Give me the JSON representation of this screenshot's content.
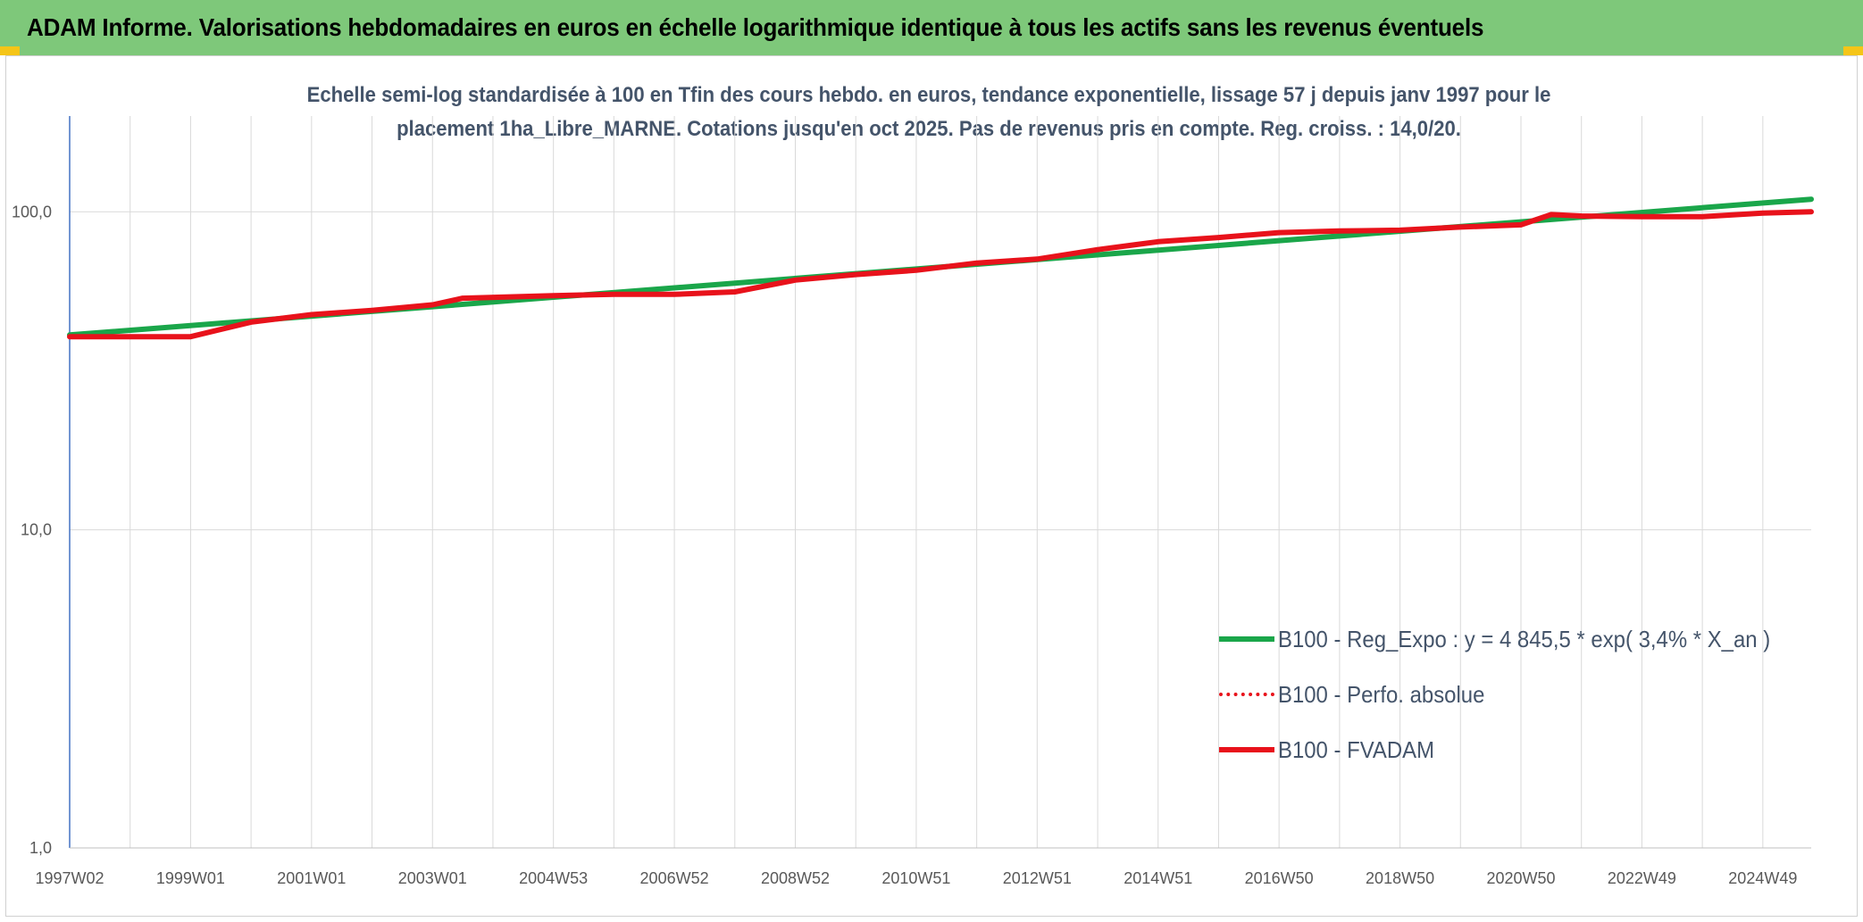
{
  "banner": {
    "title": "ADAM Informe. Valorisations hebdomadaires en euros en échelle logarithmique identique à tous les actifs sans les revenus éventuels"
  },
  "colors": {
    "banner_bg": "#7ec87a",
    "corner_marks": "#f5c518",
    "regression_green": "#1aa64a",
    "fvadam_red": "#e8121b",
    "perfo_red": "#e8121b",
    "gridline": "#d9d9d9",
    "y_axis_line": "#4472c4"
  },
  "chart_data": {
    "type": "line",
    "title": "Echelle semi-log standardisée à 100 en Tfin des cours hebdo. en euros, tendance exponentielle, lissage 57 j depuis janv 1997 pour le placement 1ha_Libre_MARNE. Cotations jusqu'en oct 2025. Pas de revenus pris en compte. Reg. croiss. : 14,0/20.",
    "title_lines": [
      "Echelle semi-log standardisée à 100 en Tfin des cours hebdo. en euros, tendance exponentielle, lissage 57 j depuis janv 1997 pour le",
      "placement 1ha_Libre_MARNE. Cotations jusqu'en oct 2025. Pas de revenus pris en compte. Reg. croiss. : 14,0/20."
    ],
    "y_scale": "log",
    "ylim": [
      1,
      200
    ],
    "y_ticks": [
      1,
      10,
      100
    ],
    "y_tick_labels": [
      "1,0",
      "10,0",
      "100,0"
    ],
    "x_range": [
      1997.0,
      2025.8
    ],
    "x_tick_labels": [
      "1997W02",
      "1999W01",
      "2001W01",
      "2003W01",
      "2004W53",
      "2006W52",
      "2008W52",
      "2010W51",
      "2012W51",
      "2014W51",
      "2016W50",
      "2018W50",
      "2020W50",
      "2022W49",
      "2024W49"
    ],
    "x_tick_years": [
      1997.0,
      1999.0,
      2001.0,
      2003.0,
      2005.0,
      2007.0,
      2009.0,
      2011.0,
      2013.0,
      2015.0,
      2017.0,
      2019.0,
      2021.0,
      2023.0,
      2025.0
    ],
    "grid": true,
    "legend_position": "bottom-right",
    "series": [
      {
        "name": "B100 - Reg_Expo : y = 4 845,5 * exp( 3,4% *  X_an )",
        "style": "solid",
        "x": [
          1997.0,
          2025.8
        ],
        "y": [
          41.0,
          109.5
        ]
      },
      {
        "name": "B100 - Perfo. absolue",
        "style": "dotted",
        "x": [
          1997.0,
          1998.0,
          1999.0,
          2000.0,
          2001.0,
          2002.0,
          2003.0,
          2003.5,
          2005.0,
          2006.0,
          2007.0,
          2008.0,
          2009.0,
          2010.0,
          2011.0,
          2012.0,
          2013.0,
          2014.0,
          2015.0,
          2016.0,
          2017.0,
          2018.0,
          2019.0,
          2020.0,
          2021.0,
          2021.5,
          2022.0,
          2023.0,
          2024.0,
          2025.0,
          2025.8
        ],
        "y": [
          40.5,
          40.5,
          40.5,
          45.0,
          47.5,
          49.0,
          51.0,
          53.5,
          54.5,
          55.0,
          55.0,
          56.0,
          61.0,
          63.5,
          65.5,
          69.0,
          71.0,
          76.0,
          80.5,
          83.0,
          86.0,
          87.0,
          87.5,
          89.5,
          91.0,
          98.0,
          97.0,
          96.5,
          96.5,
          99.0,
          100.0
        ]
      },
      {
        "name": "B100 - FVADAM",
        "style": "solid",
        "x": [
          1997.0,
          1998.0,
          1999.0,
          2000.0,
          2001.0,
          2002.0,
          2003.0,
          2003.5,
          2005.0,
          2006.0,
          2007.0,
          2008.0,
          2009.0,
          2010.0,
          2011.0,
          2012.0,
          2013.0,
          2014.0,
          2015.0,
          2016.0,
          2017.0,
          2018.0,
          2019.0,
          2020.0,
          2021.0,
          2021.5,
          2022.0,
          2023.0,
          2024.0,
          2025.0,
          2025.8
        ],
        "y": [
          40.5,
          40.5,
          40.5,
          45.0,
          47.5,
          49.0,
          51.0,
          53.5,
          54.5,
          55.0,
          55.0,
          56.0,
          61.0,
          63.5,
          65.5,
          69.0,
          71.0,
          76.0,
          80.5,
          83.0,
          86.0,
          87.0,
          87.5,
          89.5,
          91.0,
          98.0,
          97.0,
          96.5,
          96.5,
          99.0,
          100.0
        ]
      }
    ]
  }
}
